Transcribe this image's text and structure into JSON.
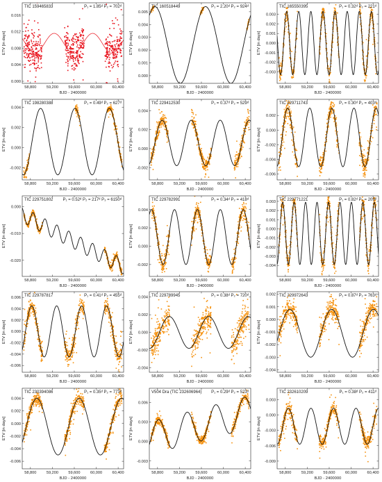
{
  "figure": {
    "marker_color_red": "#e8101a",
    "marker_color_orange": "#f5900c",
    "model_color_red": "#e8101a",
    "model_color_black": "#111111"
  },
  "chart_data": [
    {
      "type": "scatter",
      "title": "TIC 159465833",
      "period_label": "P₁ = 1.85ᵈ P₂ = 702ᵈ",
      "xlabel": "BJD - 2400000",
      "ylabel": "ETV [in days]",
      "xlim": [
        58650,
        60500
      ],
      "ylim": [
        -0.0005,
        0.019
      ],
      "yticks": [
        0.0,
        0.004,
        0.008,
        0.012,
        0.016
      ],
      "ytick_labels": [
        "0.000",
        "0.004",
        "0.008",
        "0.012",
        "0.016"
      ],
      "xticks": [
        58800,
        59200,
        59600,
        60000,
        60400
      ],
      "xtick_labels": [
        "58,800",
        "59,200",
        "59,600",
        "60,000",
        "60,400"
      ],
      "point_color": "red",
      "model_color": "red",
      "model": {
        "offset": 0.0092,
        "amplitude": 0.0024,
        "period": 702,
        "phase": -0.8
      },
      "observed_segments": [
        [
          58680,
          59010
        ],
        [
          59420,
          59780
        ],
        [
          60160,
          60470
        ]
      ],
      "scatter_level": 0.0035
    },
    {
      "type": "scatter",
      "title": "TIC 160518449",
      "period_label": "P₁ = 2.20ᵈ P₂ = 924ᵈ",
      "xlabel": "BJD - 2400000",
      "ylabel": "ETV [in days]",
      "xlim": [
        58650,
        60500
      ],
      "ylim": [
        -0.0006,
        0.0057
      ],
      "yticks": [
        0.0,
        0.001,
        0.002,
        0.003,
        0.004,
        0.005
      ],
      "ytick_labels": [
        "0.000",
        "0.001",
        "0.002",
        "0.003",
        "0.004",
        "0.005"
      ],
      "xticks": [
        58800,
        59200,
        59600,
        60000,
        60400
      ],
      "xtick_labels": [
        "58,800",
        "59,200",
        "59,600",
        "60,000",
        "60,400"
      ],
      "point_color": "orange",
      "model_color": "black",
      "model": {
        "offset": 0.0024,
        "amplitude": 0.003,
        "period": 924,
        "phase": -2.1
      },
      "observed_segments": [
        [
          58680,
          58730
        ],
        [
          59580,
          59640
        ],
        [
          60430,
          60470
        ]
      ],
      "scatter_level": 0.0001
    },
    {
      "type": "scatter",
      "title": "TIC 165550395",
      "period_label": "P₁ = 0.32ᵈ P₂ = 221ᵈ",
      "xlabel": "BJD - 2400000",
      "ylabel": "ETV [in days]",
      "xlim": [
        58650,
        60500
      ],
      "ylim": [
        -0.0042,
        0.0042
      ],
      "yticks": [
        -0.003,
        -0.002,
        -0.001,
        0.0,
        0.001,
        0.002,
        0.003
      ],
      "ytick_labels": [
        "-0.003",
        "-0.002",
        "-0.001",
        "0.000",
        "0.001",
        "0.002",
        "0.003"
      ],
      "xticks": [
        58800,
        59200,
        59600,
        60000,
        60400
      ],
      "xtick_labels": [
        "58,800",
        "59,200",
        "59,600",
        "60,000",
        "60,400"
      ],
      "point_color": "orange",
      "model_color": "black",
      "model": {
        "offset": 0.0,
        "amplitude": 0.0033,
        "period": 221,
        "phase": 0.5
      },
      "observed_segments": [
        [
          58680,
          59020
        ],
        [
          59420,
          59780
        ],
        [
          60150,
          60470
        ]
      ],
      "scatter_level": 0.0006
    },
    {
      "type": "scatter",
      "title": "TIC 198280388",
      "period_label": "P₁ = 0.49ᵈ P₂ = 627ᵈ",
      "xlabel": "BJD - 2400000",
      "ylabel": "ETV [in days]",
      "xlim": [
        58650,
        60500
      ],
      "ylim": [
        -0.0032,
        0.0048
      ],
      "yticks": [
        -0.002,
        0.0,
        0.002,
        0.004
      ],
      "ytick_labels": [
        "-0.002",
        "0.000",
        "0.002",
        "0.004"
      ],
      "xticks": [
        58800,
        59200,
        59600,
        60000,
        60400
      ],
      "xtick_labels": [
        "58,800",
        "59,200",
        "59,600",
        "60,000",
        "60,400"
      ],
      "point_color": "orange",
      "model_color": "black",
      "model": {
        "offset": 0.0006,
        "amplitude": 0.0033,
        "period": 627,
        "phase": 1.1
      },
      "observed_segments": [
        [
          58680,
          58780
        ],
        [
          59620,
          59700
        ],
        [
          60200,
          60470
        ]
      ],
      "scatter_level": 0.0003
    },
    {
      "type": "scatter",
      "title": "TIC 229412530",
      "period_label": "P₁ = 0.37ᵈ P₂ = 529ᵈ",
      "xlabel": "BJD - 2400000",
      "ylabel": "ETV [in days]",
      "xlim": [
        58650,
        60500
      ],
      "ylim": [
        -0.0033,
        0.0052
      ],
      "yticks": [
        -0.002,
        0.0,
        0.002,
        0.004
      ],
      "ytick_labels": [
        "-0.002",
        "0.000",
        "0.002",
        "0.004"
      ],
      "xticks": [
        58800,
        59200,
        59600,
        60000,
        60400
      ],
      "xtick_labels": [
        "58,800",
        "59,200",
        "59,600",
        "60,000",
        "60,400"
      ],
      "point_color": "orange",
      "model_color": "black",
      "model": {
        "offset": 0.0006,
        "amplitude": 0.0024,
        "period": 529,
        "phase": -0.4
      },
      "observed_segments": [
        [
          58680,
          59000
        ],
        [
          59420,
          59780
        ],
        [
          60200,
          60470
        ]
      ],
      "scatter_level": 0.0006
    },
    {
      "type": "scatter",
      "title": "TIC 229711743",
      "period_label": "P₁ = 0.30ᵈ P₂ = 403ᵈ",
      "xlabel": "BJD - 2400000",
      "ylabel": "ETV [in days]",
      "xlim": [
        58650,
        60500
      ],
      "ylim": [
        -0.0068,
        0.0042
      ],
      "yticks": [
        -0.006,
        -0.004,
        -0.002,
        0.0,
        0.002
      ],
      "ytick_labels": [
        "-0.006",
        "-0.004",
        "-0.002",
        "0.000",
        "0.002"
      ],
      "xticks": [
        58800,
        59200,
        59600,
        60000,
        60400
      ],
      "xtick_labels": [
        "58,800",
        "59,200",
        "59,600",
        "60,000",
        "60,400"
      ],
      "point_color": "orange",
      "model_color": "black",
      "model": {
        "offset": -0.001,
        "amplitude": 0.004,
        "period": 403,
        "phase": 1.5
      },
      "observed_segments": [
        [
          58680,
          59020
        ],
        [
          59420,
          59780
        ],
        [
          60150,
          60470
        ]
      ],
      "scatter_level": 0.001
    },
    {
      "type": "scatter",
      "title": "TIC 229751802",
      "period_label": "P₁ = 0.52ᵈ P₂ = 217ᵈ P₃ = 6150ᵈ",
      "xlabel": "BJD - 2400000",
      "ylabel": "ETV [in days]",
      "xlim": [
        58650,
        60500
      ],
      "ylim": [
        -0.026,
        0.004
      ],
      "yticks": [
        -0.02,
        -0.01,
        0.0
      ],
      "ytick_labels": [
        "-0.020",
        "-0.010",
        "0.000"
      ],
      "xticks": [
        58800,
        59200,
        59600,
        60000,
        60400
      ],
      "xtick_labels": [
        "58,800",
        "59,200",
        "59,600",
        "60,000",
        "60,400"
      ],
      "point_color": "orange",
      "model_color": "black",
      "model": {
        "offset": -0.003,
        "amplitude": 0.0028,
        "period": 217,
        "phase": 0.3,
        "trend": -1.05e-05
      },
      "observed_segments": [
        [
          58680,
          59020
        ],
        [
          60150,
          60470
        ]
      ],
      "scatter_level": 0.0007
    },
    {
      "type": "scatter",
      "title": "TIC 229782991",
      "period_label": "P₁ = 0.34ᵈ P₂ = 418ᵈ",
      "xlabel": "BJD - 2400000",
      "ylabel": "ETV [in days]",
      "xlim": [
        58650,
        60500
      ],
      "ylim": [
        -0.0033,
        0.0055
      ],
      "yticks": [
        -0.002,
        0.0,
        0.002,
        0.004
      ],
      "ytick_labels": [
        "-0.002",
        "0.000",
        "0.002",
        "0.004"
      ],
      "xticks": [
        58800,
        59200,
        59600,
        60000,
        60400
      ],
      "xtick_labels": [
        "58,800",
        "59,200",
        "59,600",
        "60,000",
        "60,400"
      ],
      "point_color": "orange",
      "model_color": "black",
      "model": {
        "offset": 0.001,
        "amplitude": 0.003,
        "period": 418,
        "phase": -1.0
      },
      "observed_segments": [
        [
          58700,
          59020
        ],
        [
          59420,
          59780
        ],
        [
          60150,
          60470
        ]
      ],
      "scatter_level": 0.0006
    },
    {
      "type": "scatter",
      "title": "TIC 229771221",
      "period_label": "P₁ = 0.82ᵈ P₂ = 209ᵈ",
      "xlabel": "BJD - 2400000",
      "ylabel": "ETV [in days]",
      "xlim": [
        58650,
        60500
      ],
      "ylim": [
        -0.0052,
        0.0036
      ],
      "yticks": [
        -0.004,
        -0.003,
        -0.002,
        -0.001,
        0.0,
        0.001,
        0.002,
        0.003
      ],
      "ytick_labels": [
        "-0.004",
        "-0.003",
        "-0.002",
        "-0.001",
        "0.000",
        "0.001",
        "0.002",
        "0.003"
      ],
      "xticks": [
        58800,
        59200,
        59600,
        60000,
        60400
      ],
      "xtick_labels": [
        "58,800",
        "59,200",
        "59,600",
        "60,000",
        "60,400"
      ],
      "point_color": "orange",
      "model_color": "black",
      "model": {
        "offset": -0.0005,
        "amplitude": 0.0034,
        "period": 209,
        "phase": 0.9
      },
      "observed_segments": [
        [
          58680,
          59020
        ],
        [
          59420,
          59780
        ],
        [
          60150,
          60470
        ]
      ],
      "scatter_level": 0.0007
    },
    {
      "type": "scatter",
      "title": "TIC 229787817",
      "period_label": "P₁ = 0.41ᵈ P₂ = 455ᵈ",
      "xlabel": "BJD - 2400000",
      "ylabel": "ETV [in days]",
      "xlim": [
        58650,
        60500
      ],
      "ylim": [
        -0.0072,
        0.007
      ],
      "yticks": [
        -0.006,
        -0.004,
        -0.002,
        0.0,
        0.002,
        0.004,
        0.006
      ],
      "ytick_labels": [
        "-0.006",
        "-0.004",
        "-0.002",
        "0.000",
        "0.002",
        "0.004",
        "0.006"
      ],
      "xticks": [
        58800,
        59200,
        59600,
        60000,
        60400
      ],
      "xtick_labels": [
        "58,800",
        "59,200",
        "59,600",
        "60,000",
        "60,400"
      ],
      "point_color": "orange",
      "model_color": "black",
      "model": {
        "offset": 0.0,
        "amplitude": 0.0045,
        "period": 455,
        "phase": -0.2
      },
      "observed_segments": [
        [
          58680,
          59020
        ],
        [
          59420,
          59780
        ],
        [
          60150,
          60470
        ]
      ],
      "scatter_level": 0.0012
    },
    {
      "type": "scatter",
      "title": "TIC 229789945",
      "period_label": "P₁ = 0.38ᵈ P₂ = 720ᵈ",
      "xlabel": "BJD - 2400000",
      "ylabel": "ETV [in days]",
      "xlim": [
        58650,
        60500
      ],
      "ylim": [
        -0.0045,
        0.0046
      ],
      "yticks": [
        -0.004,
        -0.002,
        0.0,
        0.002,
        0.004
      ],
      "ytick_labels": [
        "-0.004",
        "-0.002",
        "0.000",
        "0.002",
        "0.004"
      ],
      "xticks": [
        58800,
        59200,
        59600,
        60000,
        60400
      ],
      "xtick_labels": [
        "58,800",
        "59,200",
        "59,600",
        "60,000",
        "60,400"
      ],
      "point_color": "orange",
      "model_color": "black",
      "model": {
        "offset": 0.0,
        "amplitude": 0.0018,
        "period": 720,
        "phase": 1.8
      },
      "observed_segments": [
        [
          58680,
          59020
        ],
        [
          59420,
          59780
        ],
        [
          60150,
          60470
        ]
      ],
      "scatter_level": 0.0011
    },
    {
      "type": "scatter",
      "title": "TIC 229972643",
      "period_label": "P₁ = 0.87ᵈ P₂ = 763ᵈ",
      "xlabel": "BJD - 2400000",
      "ylabel": "ETV [in days]",
      "xlim": [
        58650,
        60500
      ],
      "ylim": [
        -0.0042,
        0.0022
      ],
      "yticks": [
        -0.004,
        -0.003,
        -0.002,
        -0.001,
        0.0,
        0.001,
        0.002
      ],
      "ytick_labels": [
        "-0.004",
        "-0.003",
        "-0.002",
        "-0.001",
        "0.000",
        "0.001",
        "0.002"
      ],
      "xticks": [
        58800,
        59200,
        59600,
        60000,
        60400
      ],
      "xtick_labels": [
        "58,800",
        "59,200",
        "59,600",
        "60,000",
        "60,400"
      ],
      "point_color": "orange",
      "model_color": "black",
      "model": {
        "offset": -0.0011,
        "amplitude": 0.0019,
        "period": 763,
        "phase": 0.5
      },
      "observed_segments": [
        [
          58680,
          59020
        ],
        [
          59420,
          59780
        ],
        [
          60150,
          60470
        ]
      ],
      "scatter_level": 0.0006
    },
    {
      "type": "scatter",
      "title": "TIC 230394086",
      "period_label": "P₁ = 0.35ᵈ P₂ = 773ᵈ",
      "xlabel": "BJD - 2400000",
      "ylabel": "ETV [in days]",
      "xlim": [
        58650,
        60500
      ],
      "ylim": [
        -0.0072,
        0.0056
      ],
      "yticks": [
        -0.006,
        -0.004,
        -0.002,
        0.0,
        0.002,
        0.004
      ],
      "ytick_labels": [
        "-0.006",
        "-0.004",
        "-0.002",
        "0.000",
        "0.002",
        "0.004"
      ],
      "xticks": [
        58800,
        59200,
        59600,
        60000,
        60400
      ],
      "xtick_labels": [
        "58,800",
        "59,200",
        "59,600",
        "60,000",
        "60,400"
      ],
      "point_color": "orange",
      "model_color": "black",
      "model": {
        "offset": -0.0005,
        "amplitude": 0.0045,
        "period": 773,
        "phase": 0.2
      },
      "observed_segments": [
        [
          58680,
          59020
        ],
        [
          59420,
          59780
        ],
        [
          60150,
          60470
        ]
      ],
      "scatter_level": 0.0008
    },
    {
      "type": "scatter",
      "title": "V504 Dra (TIC 232606964)",
      "period_label": "P₁ = 0.29ᵈ P₂ = 523ᵈ",
      "xlabel": "BJD - 2400000",
      "ylabel": "ETV [in days]",
      "xlim": [
        58650,
        60500
      ],
      "ylim": [
        -0.0042,
        0.0082
      ],
      "yticks": [
        -0.003,
        0.0,
        0.003,
        0.006
      ],
      "ytick_labels": [
        "-0.003",
        "0.000",
        "0.003",
        "0.006"
      ],
      "xticks": [
        58800,
        59200,
        59600,
        60000,
        60400
      ],
      "xtick_labels": [
        "58,800",
        "59,200",
        "59,600",
        "60,000",
        "60,400"
      ],
      "point_color": "orange",
      "model_color": "black",
      "model": {
        "offset": 0.0005,
        "amplitude": 0.0025,
        "period": 523,
        "phase": -1.3,
        "trend": 2.2e-06
      },
      "observed_segments": [
        [
          58680,
          59020
        ],
        [
          59420,
          59780
        ],
        [
          60150,
          60470
        ]
      ],
      "scatter_level": 0.0005
    },
    {
      "type": "scatter",
      "title": "TIC 232610209",
      "period_label": "P₁ = 0.38ᵈ P₂ = 411ᵈ",
      "xlabel": "BJD - 2400000",
      "ylabel": "ETV [in days]",
      "xlim": [
        58650,
        60500
      ],
      "ylim": [
        -0.0105,
        0.0052
      ],
      "yticks": [
        -0.009,
        -0.006,
        -0.003,
        0.0,
        0.003
      ],
      "ytick_labels": [
        "-0.009",
        "-0.006",
        "-0.003",
        "0.000",
        "0.003"
      ],
      "xticks": [
        58800,
        59200,
        59600,
        60000,
        60400
      ],
      "xtick_labels": [
        "58,800",
        "59,200",
        "59,600",
        "60,000",
        "60,400"
      ],
      "point_color": "orange",
      "model_color": "black",
      "model": {
        "offset": -0.0022,
        "amplitude": 0.0035,
        "period": 411,
        "phase": 0.3
      },
      "observed_segments": [
        [
          58680,
          59020
        ],
        [
          59420,
          59780
        ],
        [
          60150,
          60470
        ]
      ],
      "scatter_level": 0.001
    }
  ]
}
